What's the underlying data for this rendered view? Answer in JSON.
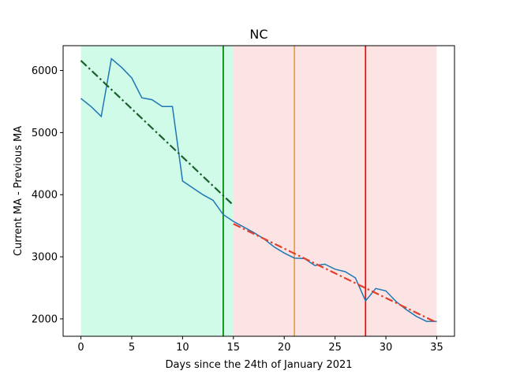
{
  "chart_data": {
    "type": "line",
    "title": "NC",
    "xlabel": "Days since the 24th of January 2021",
    "ylabel": "Current MA - Previous MA",
    "xlim": [
      -1.75,
      36.75
    ],
    "ylim": [
      1720,
      6400
    ],
    "xticks": [
      0,
      5,
      10,
      15,
      20,
      25,
      30,
      35
    ],
    "yticks": [
      2000,
      3000,
      4000,
      5000,
      6000
    ],
    "grid": false,
    "legend": "none",
    "regions": [
      {
        "x0": 0,
        "x1": 15,
        "color": "#cffbe8"
      },
      {
        "x0": 15,
        "x1": 35,
        "color": "#fde4e4"
      }
    ],
    "vlines": [
      {
        "x": 14,
        "color": "#008000"
      },
      {
        "x": 21,
        "color": "#e8a040"
      },
      {
        "x": 28,
        "color": "#ff0000"
      }
    ],
    "series": [
      {
        "style": "solid",
        "color": "#1f77b4",
        "x": [
          0,
          1,
          2,
          3,
          4,
          5,
          6,
          7,
          8,
          9,
          10,
          11,
          12,
          13,
          14,
          15,
          16,
          17,
          18,
          19,
          20,
          21,
          22,
          23,
          24,
          25,
          26,
          27,
          28,
          29,
          30,
          31,
          32,
          33,
          34,
          35
        ],
        "y": [
          5550,
          5420,
          5260,
          6190,
          6050,
          5880,
          5560,
          5530,
          5420,
          5420,
          4220,
          4110,
          4000,
          3910,
          3680,
          3570,
          3480,
          3390,
          3290,
          3160,
          3060,
          2980,
          2970,
          2860,
          2880,
          2800,
          2760,
          2660,
          2290,
          2490,
          2450,
          2280,
          2150,
          2040,
          1960,
          1960
        ]
      },
      {
        "style": "dashdot",
        "color": "#1c5e2e",
        "x": [
          0,
          15
        ],
        "y": [
          6160,
          3830
        ]
      },
      {
        "style": "dashdot",
        "color": "#e0402a",
        "x": [
          15,
          35
        ],
        "y": [
          3530,
          1940
        ]
      }
    ]
  }
}
